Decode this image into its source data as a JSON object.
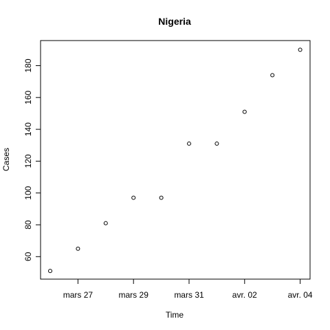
{
  "chart_data": {
    "type": "scatter",
    "title": "Nigeria",
    "xlabel": "Time",
    "ylabel": "Cases",
    "x": [
      "2020-03-26",
      "2020-03-27",
      "2020-03-28",
      "2020-03-29",
      "2020-03-30",
      "2020-03-31",
      "2020-04-01",
      "2020-04-02",
      "2020-04-03",
      "2020-04-04"
    ],
    "y": [
      51,
      65,
      81,
      97,
      97,
      131,
      131,
      151,
      174,
      190
    ],
    "xlim": [
      "2020-03-26",
      "2020-04-04"
    ],
    "ylim": [
      45,
      195
    ],
    "x_ticks": [
      {
        "date": "2020-03-27",
        "label": "mars 27"
      },
      {
        "date": "2020-03-29",
        "label": "mars 29"
      },
      {
        "date": "2020-03-31",
        "label": "mars 31"
      },
      {
        "date": "2020-04-02",
        "label": "avr. 02"
      },
      {
        "date": "2020-04-04",
        "label": "avr. 04"
      }
    ],
    "y_ticks": [
      60,
      80,
      100,
      120,
      140,
      160,
      180
    ],
    "grid": false,
    "marker": "open-circle",
    "point_color": "#000000"
  }
}
